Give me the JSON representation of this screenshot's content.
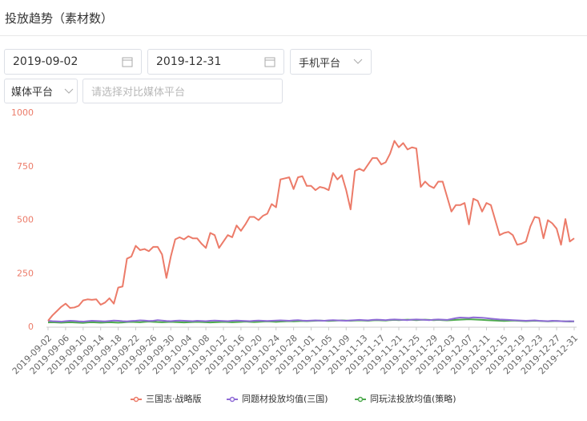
{
  "header": {
    "title": "投放趋势（素材数）"
  },
  "filters": {
    "start_date": "2019-09-02",
    "end_date": "2019-12-31",
    "device": "手机平台",
    "media": "媒体平台",
    "compare_placeholder": "请选择对比媒体平台"
  },
  "chart_data": {
    "type": "line",
    "x": [
      "2019-09-02",
      null,
      null,
      null,
      "2019-09-06",
      null,
      null,
      null,
      "2019-09-10",
      null,
      null,
      null,
      "2019-09-14",
      null,
      null,
      null,
      "2019-09-18",
      null,
      null,
      null,
      "2019-09-22",
      null,
      null,
      null,
      "2019-09-26",
      null,
      null,
      null,
      "2019-09-30",
      null,
      null,
      null,
      "2019-10-04",
      null,
      null,
      null,
      "2019-10-08",
      null,
      null,
      null,
      "2019-10-12",
      null,
      null,
      null,
      "2019-10-16",
      null,
      null,
      null,
      "2019-10-20",
      null,
      null,
      null,
      "2019-10-24",
      null,
      null,
      null,
      "2019-10-28",
      null,
      null,
      null,
      "2019-11-01",
      null,
      null,
      null,
      "2019-11-05",
      null,
      null,
      null,
      "2019-11-09",
      null,
      null,
      null,
      "2019-11-13",
      null,
      null,
      null,
      "2019-11-17",
      null,
      null,
      null,
      "2019-11-21",
      null,
      null,
      null,
      "2019-11-25",
      null,
      null,
      null,
      "2019-11-29",
      null,
      null,
      null,
      "2019-12-03",
      null,
      null,
      null,
      "2019-12-07",
      null,
      null,
      null,
      "2019-12-11",
      null,
      null,
      null,
      "2019-12-15",
      null,
      null,
      null,
      "2019-12-19",
      null,
      null,
      null,
      "2019-12-23",
      null,
      null,
      null,
      "2019-12-27",
      null,
      null,
      null,
      "2019-12-31"
    ],
    "series": [
      {
        "name": "三国志·战略版",
        "color": "#ec7b69",
        "values": [
          30,
          55,
          75,
          95,
          110,
          90,
          92,
          100,
          125,
          130,
          128,
          130,
          105,
          115,
          135,
          110,
          185,
          190,
          320,
          330,
          380,
          360,
          365,
          355,
          375,
          375,
          340,
          230,
          330,
          410,
          420,
          410,
          425,
          415,
          415,
          390,
          370,
          440,
          430,
          370,
          400,
          430,
          420,
          475,
          450,
          480,
          515,
          515,
          500,
          520,
          530,
          575,
          560,
          690,
          695,
          700,
          645,
          700,
          705,
          660,
          660,
          640,
          655,
          650,
          640,
          720,
          690,
          710,
          640,
          550,
          730,
          740,
          730,
          760,
          790,
          790,
          760,
          770,
          810,
          870,
          840,
          860,
          830,
          840,
          835,
          655,
          680,
          660,
          650,
          680,
          680,
          610,
          540,
          570,
          570,
          580,
          480,
          600,
          590,
          540,
          580,
          570,
          500,
          430,
          440,
          445,
          430,
          385,
          390,
          400,
          470,
          515,
          510,
          415,
          500,
          485,
          460,
          385,
          505,
          400,
          415
        ]
      },
      {
        "name": "同题材投放均值(三国)",
        "color": "#8f6bd6",
        "values": [
          30,
          28,
          27,
          26,
          28,
          30,
          29,
          27,
          26,
          28,
          30,
          29,
          28,
          27,
          29,
          31,
          30,
          28,
          27,
          29,
          30,
          32,
          31,
          29,
          30,
          33,
          31,
          29,
          28,
          30,
          31,
          30,
          29,
          28,
          30,
          29,
          28,
          30,
          31,
          30,
          29,
          28,
          30,
          31,
          30,
          29,
          28,
          30,
          31,
          30,
          29,
          30,
          31,
          32,
          31,
          30,
          32,
          33,
          31,
          30,
          31,
          32,
          31,
          30,
          32,
          33,
          32,
          31,
          30,
          32,
          33,
          34,
          33,
          32,
          34,
          35,
          34,
          33,
          35,
          36,
          35,
          34,
          33,
          35,
          36,
          35,
          34,
          33,
          35,
          36,
          35,
          34,
          38,
          42,
          45,
          44,
          43,
          46,
          45,
          44,
          42,
          40,
          38,
          36,
          35,
          34,
          33,
          32,
          31,
          30,
          31,
          32,
          30,
          29,
          28,
          30,
          29,
          28,
          27,
          28,
          27
        ]
      },
      {
        "name": "同玩法投放均值(策略)",
        "color": "#4caa4c",
        "values": [
          22,
          23,
          22,
          21,
          22,
          23,
          22,
          21,
          20,
          22,
          23,
          22,
          21,
          22,
          23,
          22,
          21,
          22,
          24,
          25,
          24,
          23,
          25,
          26,
          25,
          24,
          23,
          24,
          25,
          24,
          23,
          22,
          23,
          24,
          25,
          24,
          23,
          22,
          23,
          24,
          25,
          24,
          23,
          24,
          25,
          26,
          25,
          24,
          25,
          26,
          27,
          26,
          25,
          26,
          27,
          28,
          27,
          28,
          29,
          28,
          29,
          30,
          31,
          30,
          29,
          30,
          31,
          32,
          31,
          30,
          31,
          32,
          31,
          30,
          32,
          33,
          32,
          31,
          33,
          34,
          33,
          34,
          35,
          34,
          33,
          34,
          35,
          34,
          33,
          34,
          33,
          32,
          33,
          34,
          35,
          36,
          37,
          36,
          35,
          34,
          33,
          32,
          31,
          30,
          29,
          30,
          31,
          30,
          29,
          28,
          29,
          30,
          29,
          28,
          27,
          28,
          29,
          28,
          27,
          26,
          27
        ]
      }
    ],
    "ylim": [
      0,
      1000
    ],
    "yticks": [
      0,
      250,
      500,
      750,
      1000
    ]
  }
}
